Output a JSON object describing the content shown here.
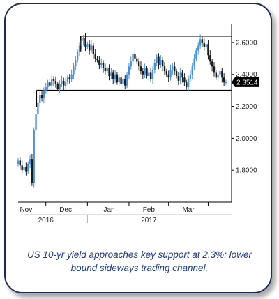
{
  "chart_data": {
    "type": "candlestick",
    "title": "",
    "xlabel": "",
    "ylabel": "",
    "ylim": [
      1.6,
      2.7
    ],
    "yticks": [
      "2.6000",
      "2.4000",
      "2.2000",
      "2.0000",
      "1.8000"
    ],
    "ytick_values": [
      2.6,
      2.4,
      2.2,
      2.0,
      1.8
    ],
    "x_month_labels": [
      "Nov",
      "Dec",
      "Jan",
      "Feb",
      "Mar"
    ],
    "x_year_labels": [
      "2016",
      "2017"
    ],
    "last_value_label": "2.3514",
    "last_value": 2.3514,
    "channel": {
      "upper": 2.64,
      "lower": 2.3
    },
    "colors": {
      "up": "#4a90d9",
      "down": "#1a1a1a",
      "line": "#000000",
      "last_label_bg": "#000000"
    },
    "series": [
      {
        "values": [
          1.86,
          1.83,
          1.8,
          1.82,
          1.79,
          1.84,
          1.87,
          1.72,
          2.05,
          2.15,
          2.22,
          2.27,
          2.25,
          2.3,
          2.32,
          2.35,
          2.33,
          2.37,
          2.36,
          2.34,
          2.31,
          2.34,
          2.36,
          2.33,
          2.35,
          2.38,
          2.37,
          2.4,
          2.45,
          2.49,
          2.54,
          2.58,
          2.61,
          2.63,
          2.57,
          2.59,
          2.55,
          2.58,
          2.53,
          2.5,
          2.49,
          2.46,
          2.47,
          2.44,
          2.42,
          2.44,
          2.39,
          2.41,
          2.37,
          2.4,
          2.35,
          2.38,
          2.34,
          2.37,
          2.33,
          2.4,
          2.45,
          2.48,
          2.53,
          2.5,
          2.48,
          2.45,
          2.42,
          2.4,
          2.44,
          2.39,
          2.41,
          2.37,
          2.43,
          2.47,
          2.51,
          2.46,
          2.49,
          2.45,
          2.42,
          2.4,
          2.38,
          2.43,
          2.45,
          2.42,
          2.39,
          2.36,
          2.41,
          2.38,
          2.35,
          2.32,
          2.37,
          2.4,
          2.45,
          2.5,
          2.55,
          2.58,
          2.62,
          2.6,
          2.57,
          2.59,
          2.52,
          2.48,
          2.45,
          2.41,
          2.38,
          2.4,
          2.42,
          2.38,
          2.35,
          2.3514
        ]
      }
    ]
  },
  "caption": {
    "line1": "US 10-yr yield approaches key support at 2.3%; lower",
    "line2": "bound sideways trading channel."
  }
}
